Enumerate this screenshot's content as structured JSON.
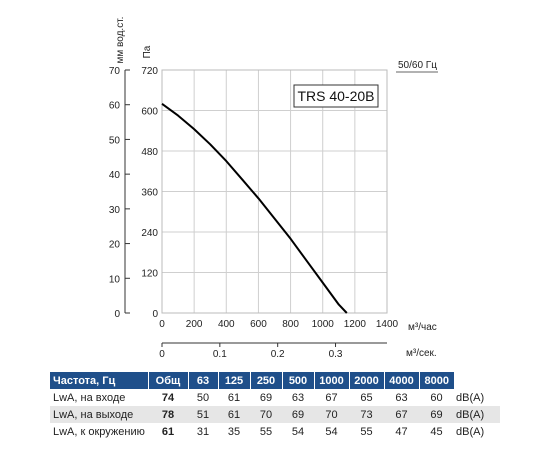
{
  "chart_data": {
    "type": "line",
    "title": "TRS 40-20B",
    "xlabel": "м³/час",
    "ylabel": "Па",
    "ylabel_secondary": "мм вод.ст.",
    "frequency_label": "50/60 Гц",
    "x2label": "м³/сек.",
    "xlim": [
      0,
      1400
    ],
    "ylim": [
      0,
      720
    ],
    "y2lim": [
      0,
      70
    ],
    "x2lim": [
      0,
      0.389
    ],
    "grid": true,
    "x_ticks": [
      "0",
      "200",
      "400",
      "600",
      "800",
      "1000",
      "1200",
      "1400"
    ],
    "y_ticks": [
      "0",
      "120",
      "240",
      "360",
      "480",
      "600",
      "720"
    ],
    "y2_ticks": [
      "0",
      "10",
      "20",
      "30",
      "40",
      "50",
      "60",
      "70"
    ],
    "x2_ticks": [
      "0",
      "0.1",
      "0.2",
      "0.3"
    ],
    "x2_tick_values": [
      0,
      0.1,
      0.2,
      0.3
    ],
    "series": [
      {
        "x": [
          0,
          100,
          200,
          300,
          400,
          500,
          600,
          700,
          800,
          900,
          1000,
          1100,
          1150
        ],
        "values": [
          620,
          585,
          545,
          500,
          450,
          395,
          340,
          280,
          220,
          155,
          90,
          25,
          0
        ]
      }
    ]
  },
  "table": {
    "headers": [
      "Частота, Гц",
      "Общ",
      "63",
      "125",
      "250",
      "500",
      "1000",
      "2000",
      "4000",
      "8000"
    ],
    "rows": [
      {
        "label": "LwA, на входе",
        "total": "74",
        "values": [
          "50",
          "61",
          "69",
          "63",
          "67",
          "65",
          "63",
          "60"
        ],
        "unit": "dB(A)"
      },
      {
        "label": "LwA, на выходе",
        "total": "78",
        "values": [
          "51",
          "61",
          "70",
          "69",
          "70",
          "73",
          "67",
          "69"
        ],
        "unit": "dB(A)"
      },
      {
        "label": "LwA, к окружению",
        "total": "61",
        "values": [
          "31",
          "35",
          "55",
          "54",
          "54",
          "55",
          "47",
          "45"
        ],
        "unit": "dB(A)"
      }
    ]
  }
}
